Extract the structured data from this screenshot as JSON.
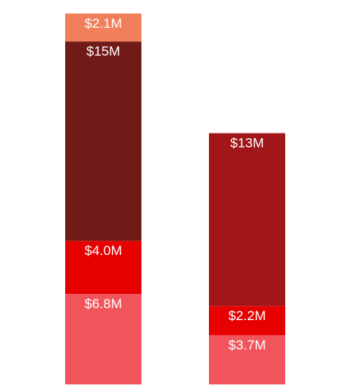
{
  "chart_data": {
    "type": "bar",
    "stacked": true,
    "categories": [
      "",
      ""
    ],
    "series": [
      {
        "values": [
          6.8,
          3.7
        ],
        "labels": [
          "$6.8M",
          "$3.7M"
        ],
        "color": "#f2545b"
      },
      {
        "values": [
          4.0,
          2.2
        ],
        "labels": [
          "$4.0M",
          "$2.2M"
        ],
        "color": "#e60000"
      },
      {
        "values": [
          15,
          0
        ],
        "labels": [
          "$15M",
          ""
        ],
        "color": "#711b18"
      },
      {
        "values": [
          0,
          13
        ],
        "labels": [
          "",
          "$13M"
        ],
        "color": "#a11719"
      },
      {
        "values": [
          2.1,
          0
        ],
        "labels": [
          "$2.1M",
          ""
        ],
        "color": "#f17f5b"
      }
    ],
    "ylim": [
      0,
      27.9
    ],
    "grid": false,
    "legend": "none"
  }
}
